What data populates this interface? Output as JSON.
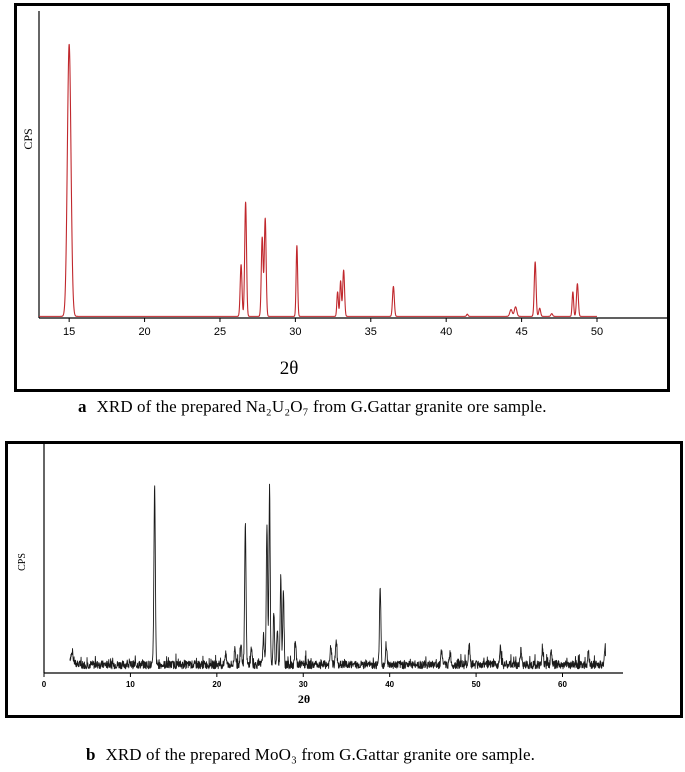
{
  "chart_data": [
    {
      "type": "line",
      "label": "a",
      "caption": "XRD of the prepared Na₂U₂O₇ from G.Gattar granite ore sample.",
      "caption_letter": "a",
      "caption_text": "XRD of the prepared Na₂U₂O₇ from G.Gattar granite ore sample.",
      "xlabel": "2θ",
      "ylabel": "CPS",
      "xlim": [
        13,
        50
      ],
      "ylim": [
        0,
        100
      ],
      "xticks": [
        15,
        20,
        25,
        30,
        35,
        40,
        45,
        50
      ],
      "color": "#c0282d",
      "baseline": 0.6,
      "peaks": [
        {
          "x": 15.0,
          "y": 100,
          "w": 0.12
        },
        {
          "x": 26.4,
          "y": 19,
          "w": 0.06
        },
        {
          "x": 26.7,
          "y": 42,
          "w": 0.06
        },
        {
          "x": 27.8,
          "y": 29,
          "w": 0.06
        },
        {
          "x": 28.0,
          "y": 36,
          "w": 0.06
        },
        {
          "x": 30.1,
          "y": 26,
          "w": 0.05
        },
        {
          "x": 32.8,
          "y": 9,
          "w": 0.05
        },
        {
          "x": 33.0,
          "y": 13,
          "w": 0.05
        },
        {
          "x": 33.2,
          "y": 17,
          "w": 0.06
        },
        {
          "x": 36.5,
          "y": 11,
          "w": 0.06
        },
        {
          "x": 41.4,
          "y": 0.8,
          "w": 0.05
        },
        {
          "x": 44.3,
          "y": 2.5,
          "w": 0.08
        },
        {
          "x": 44.6,
          "y": 3.5,
          "w": 0.08
        },
        {
          "x": 45.9,
          "y": 20,
          "w": 0.06
        },
        {
          "x": 46.2,
          "y": 3,
          "w": 0.06
        },
        {
          "x": 47.0,
          "y": 1,
          "w": 0.06
        },
        {
          "x": 48.4,
          "y": 9,
          "w": 0.05
        },
        {
          "x": 48.7,
          "y": 12,
          "w": 0.06
        }
      ]
    },
    {
      "type": "line",
      "label": "b",
      "caption": "XRD of the prepared MoO₃ from G.Gattar granite ore sample.",
      "caption_letter": "b",
      "caption_text": "XRD of the prepared MoO₃ from G.Gattar granite ore sample.",
      "xlabel": "2θ",
      "ylabel": "CPS",
      "xlim": [
        0,
        67
      ],
      "ylim": [
        0,
        100
      ],
      "xticks": [
        0,
        10,
        20,
        30,
        40,
        50,
        60
      ],
      "color": "#1a1a1a",
      "x_start": 3,
      "x_end": 65,
      "baseline": 4,
      "noise": 2,
      "peaks": [
        {
          "x": 3.2,
          "y": 5,
          "w": 0.2
        },
        {
          "x": 12.8,
          "y": 86,
          "w": 0.08
        },
        {
          "x": 21.0,
          "y": 5,
          "w": 0.1
        },
        {
          "x": 22.1,
          "y": 9,
          "w": 0.08
        },
        {
          "x": 22.8,
          "y": 11,
          "w": 0.08
        },
        {
          "x": 23.3,
          "y": 67,
          "w": 0.08
        },
        {
          "x": 24.0,
          "y": 8,
          "w": 0.08
        },
        {
          "x": 25.4,
          "y": 14,
          "w": 0.08
        },
        {
          "x": 25.8,
          "y": 67,
          "w": 0.08
        },
        {
          "x": 26.1,
          "y": 86,
          "w": 0.07
        },
        {
          "x": 26.6,
          "y": 26,
          "w": 0.07
        },
        {
          "x": 27.0,
          "y": 17,
          "w": 0.07
        },
        {
          "x": 27.4,
          "y": 44,
          "w": 0.07
        },
        {
          "x": 27.7,
          "y": 35,
          "w": 0.07
        },
        {
          "x": 29.1,
          "y": 10,
          "w": 0.08
        },
        {
          "x": 33.2,
          "y": 9,
          "w": 0.08
        },
        {
          "x": 33.8,
          "y": 11,
          "w": 0.08
        },
        {
          "x": 38.9,
          "y": 38,
          "w": 0.08
        },
        {
          "x": 39.6,
          "y": 10,
          "w": 0.08
        },
        {
          "x": 46.0,
          "y": 7,
          "w": 0.08
        },
        {
          "x": 47.0,
          "y": 6,
          "w": 0.08
        },
        {
          "x": 49.2,
          "y": 9,
          "w": 0.08
        },
        {
          "x": 52.8,
          "y": 9,
          "w": 0.08
        },
        {
          "x": 55.2,
          "y": 7,
          "w": 0.08
        },
        {
          "x": 57.7,
          "y": 7,
          "w": 0.08
        },
        {
          "x": 58.7,
          "y": 7,
          "w": 0.08
        },
        {
          "x": 63.0,
          "y": 6,
          "w": 0.08
        },
        {
          "x": 64.9,
          "y": 7,
          "w": 0.08
        }
      ]
    }
  ]
}
